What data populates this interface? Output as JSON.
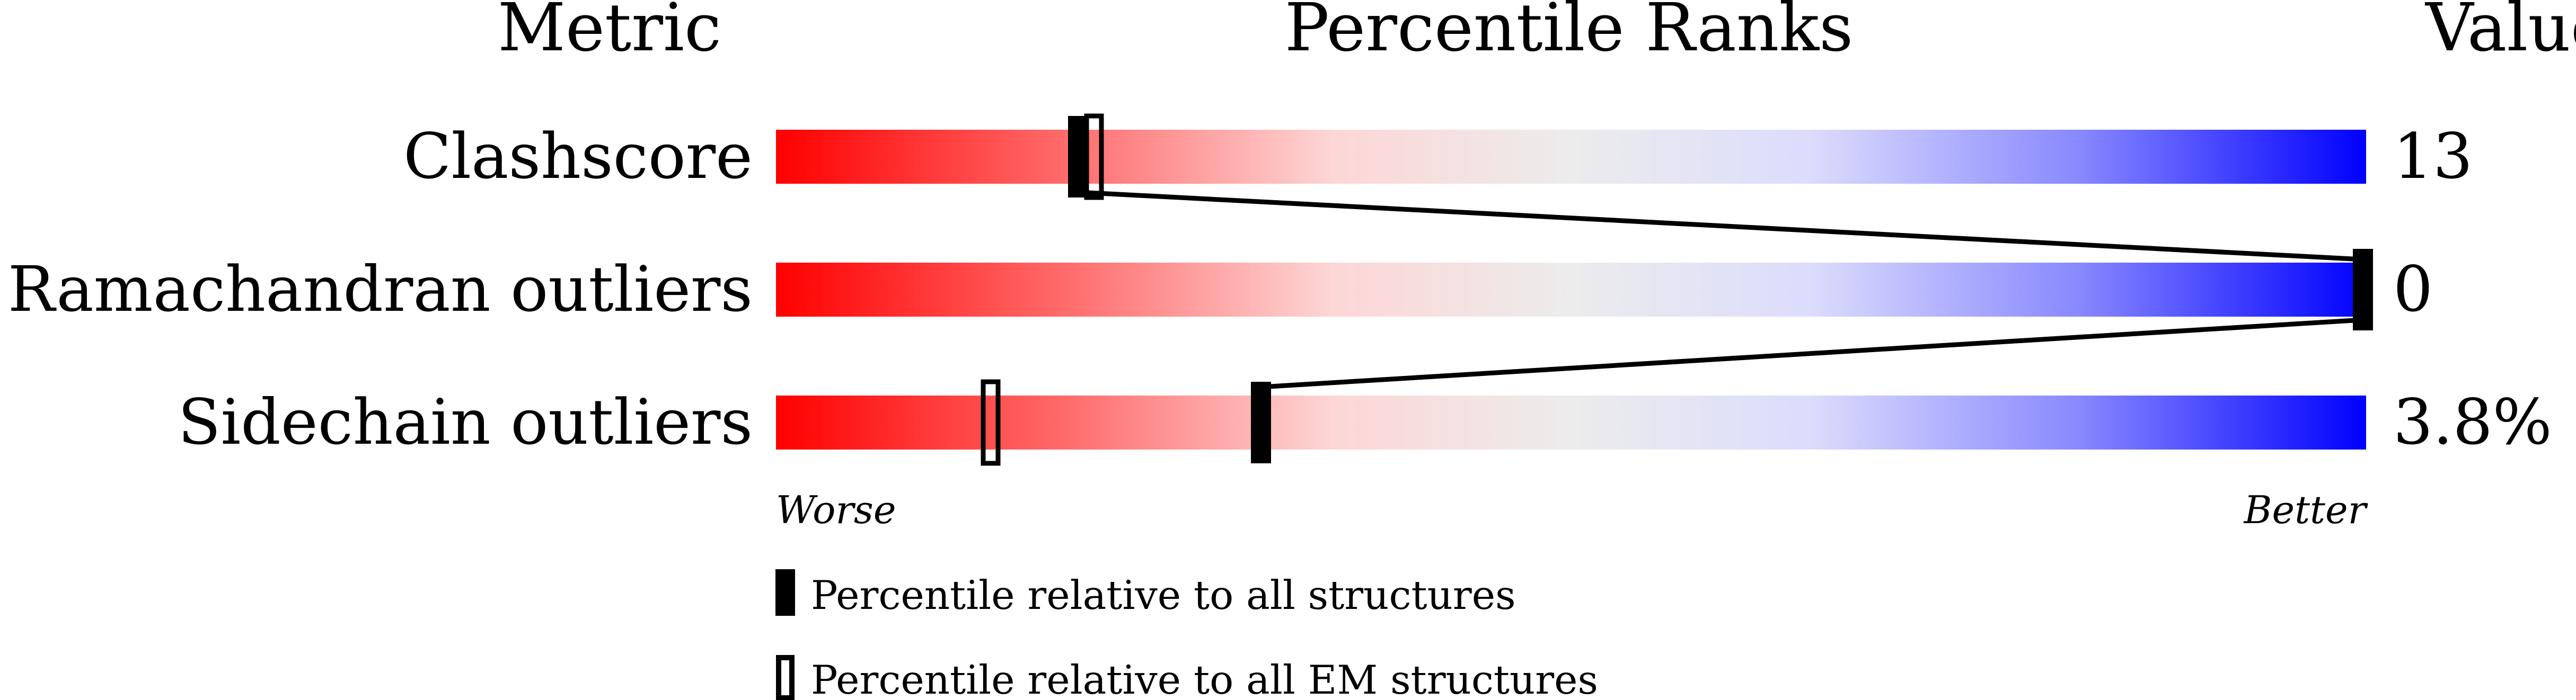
{
  "chart_data": {
    "type": "percentile-bar",
    "headers": {
      "metric": "Metric",
      "ranks": "Percentile Ranks",
      "value": "Value"
    },
    "rows": [
      {
        "metric": "Clashscore",
        "value": "13",
        "percentile_all": 19,
        "percentile_em": 20
      },
      {
        "metric": "Ramachandran outliers",
        "value": "0",
        "percentile_all": 100,
        "percentile_em": 100
      },
      {
        "metric": "Sidechain outliers",
        "value": "3.8%",
        "percentile_all": 30.5,
        "percentile_em": 13.5
      }
    ],
    "axis": {
      "left": "Worse",
      "right": "Better",
      "range": [
        0,
        100
      ]
    },
    "legend": {
      "all": "Percentile relative to all structures",
      "em": "Percentile relative to all EM structures"
    },
    "colors": {
      "worse": "#ff0000",
      "middle": "#eeeeee",
      "better": "#0000ff"
    }
  }
}
